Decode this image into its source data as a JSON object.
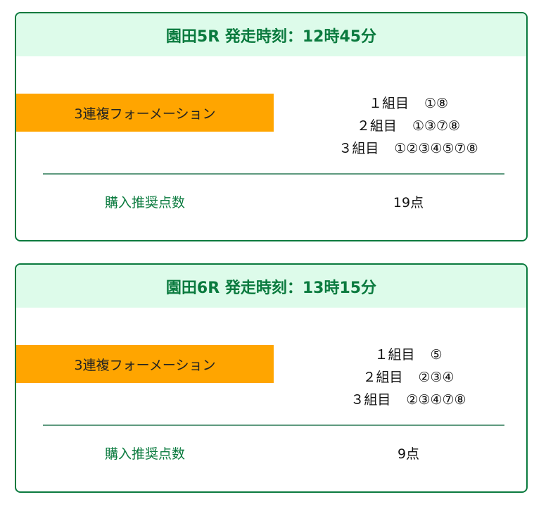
{
  "races": [
    {
      "title": "園田5R 発走時刻：12時45分",
      "bet_type": "3連複フォーメーション",
      "groups": [
        {
          "label": "１組目",
          "numbers": "①⑧"
        },
        {
          "label": "２組目",
          "numbers": "①③⑦⑧"
        },
        {
          "label": "３組目",
          "numbers": "①②③④⑤⑦⑧"
        }
      ],
      "points_label": "購入推奨点数",
      "points_value": "19点"
    },
    {
      "title": "園田6R 発走時刻：13時15分",
      "bet_type": "3連複フォーメーション",
      "groups": [
        {
          "label": "１組目",
          "numbers": "⑤"
        },
        {
          "label": "２組目",
          "numbers": "②③④"
        },
        {
          "label": "３組目",
          "numbers": "②③④⑦⑧"
        }
      ],
      "points_label": "購入推奨点数",
      "points_value": "9点"
    }
  ],
  "colors": {
    "accent": "#0a7a3e",
    "header_bg": "#ddfbea",
    "bet_bg": "#ffa500"
  }
}
